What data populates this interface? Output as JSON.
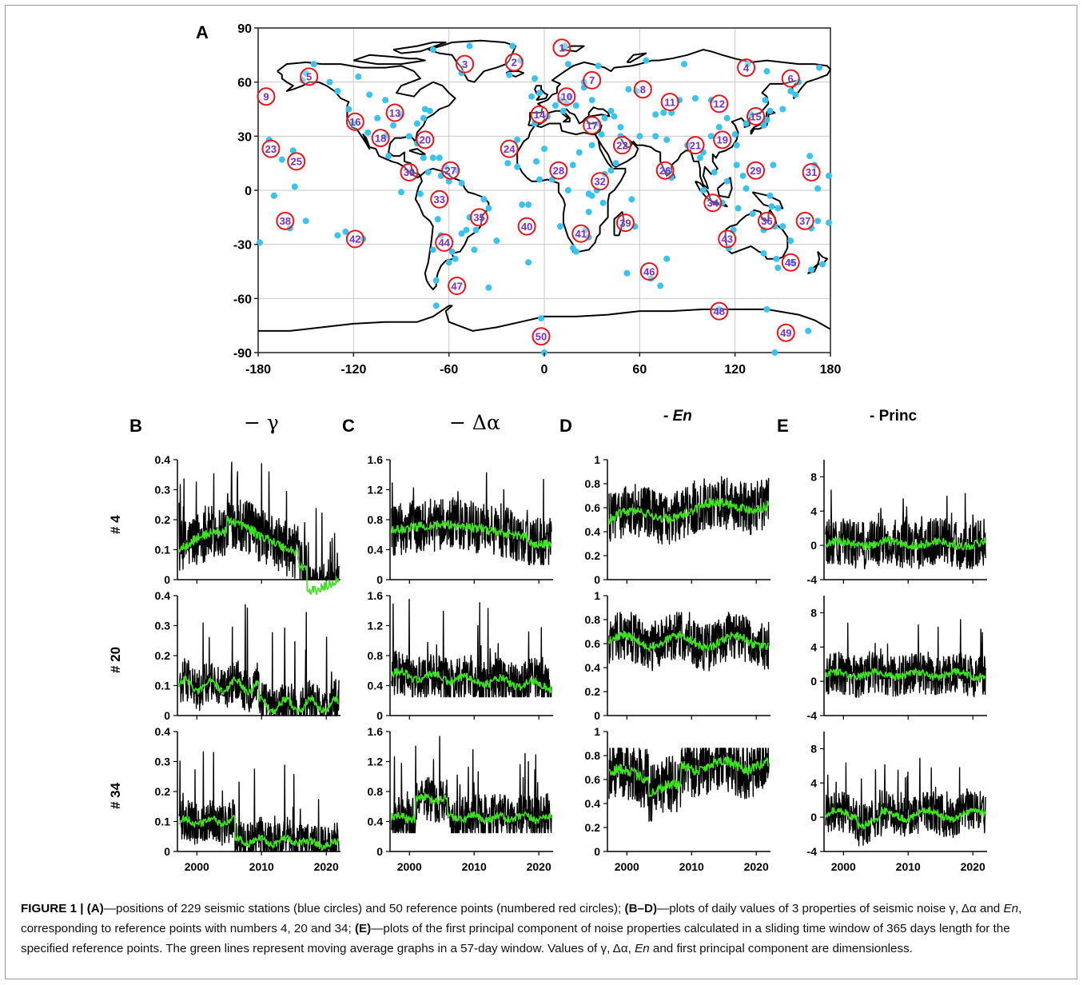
{
  "map": {
    "panel_letter": "A",
    "x_ticks": [
      -180,
      -120,
      -60,
      0,
      60,
      120,
      180
    ],
    "y_ticks": [
      90,
      60,
      30,
      0,
      -30,
      -60,
      -90
    ],
    "station_color": "#3cc2ee",
    "ref_color": "#e8141e",
    "ref_text_color": "#7b2fc2",
    "reference_points": [
      {
        "n": "1",
        "lon": 11,
        "lat": 79
      },
      {
        "n": "2",
        "lon": -19,
        "lat": 71
      },
      {
        "n": "3",
        "lon": -50,
        "lat": 70
      },
      {
        "n": "4",
        "lon": 127,
        "lat": 68
      },
      {
        "n": "5",
        "lon": -148,
        "lat": 63
      },
      {
        "n": "6",
        "lon": 155,
        "lat": 62
      },
      {
        "n": "7",
        "lon": 30,
        "lat": 61
      },
      {
        "n": "8",
        "lon": 62,
        "lat": 56
      },
      {
        "n": "9",
        "lon": -175,
        "lat": 52
      },
      {
        "n": "10",
        "lon": 14,
        "lat": 52
      },
      {
        "n": "11",
        "lon": 79,
        "lat": 49
      },
      {
        "n": "12",
        "lon": 110,
        "lat": 48
      },
      {
        "n": "13",
        "lon": -94,
        "lat": 43
      },
      {
        "n": "14",
        "lon": -3,
        "lat": 42
      },
      {
        "n": "15",
        "lon": 133,
        "lat": 41
      },
      {
        "n": "16",
        "lon": -119,
        "lat": 38
      },
      {
        "n": "17",
        "lon": 30,
        "lat": 36
      },
      {
        "n": "18",
        "lon": -103,
        "lat": 29
      },
      {
        "n": "19",
        "lon": 112,
        "lat": 28
      },
      {
        "n": "20",
        "lon": -75,
        "lat": 28
      },
      {
        "n": "21",
        "lon": 95,
        "lat": 25
      },
      {
        "n": "22",
        "lon": 49,
        "lat": 25
      },
      {
        "n": "23",
        "lon": -172,
        "lat": 23
      },
      {
        "n": "24",
        "lon": -22,
        "lat": 23
      },
      {
        "n": "25",
        "lon": -156,
        "lat": 16
      },
      {
        "n": "26",
        "lon": 76,
        "lat": 11
      },
      {
        "n": "27",
        "lon": -59,
        "lat": 11
      },
      {
        "n": "28",
        "lon": 9,
        "lat": 11
      },
      {
        "n": "29",
        "lon": 133,
        "lat": 11
      },
      {
        "n": "30",
        "lon": -85,
        "lat": 10
      },
      {
        "n": "31",
        "lon": 168,
        "lat": 10
      },
      {
        "n": "32",
        "lon": 35,
        "lat": 5
      },
      {
        "n": "33",
        "lon": -66,
        "lat": -5
      },
      {
        "n": "34",
        "lon": 106,
        "lat": -7
      },
      {
        "n": "35",
        "lon": -41,
        "lat": -15
      },
      {
        "n": "36",
        "lon": 140,
        "lat": -17
      },
      {
        "n": "37",
        "lon": 164,
        "lat": -17
      },
      {
        "n": "38",
        "lon": -163,
        "lat": -17
      },
      {
        "n": "39",
        "lon": 51,
        "lat": -18
      },
      {
        "n": "40",
        "lon": -11,
        "lat": -20
      },
      {
        "n": "41",
        "lon": 23,
        "lat": -24
      },
      {
        "n": "42",
        "lon": -119,
        "lat": -27
      },
      {
        "n": "43",
        "lon": 115,
        "lat": -27
      },
      {
        "n": "44",
        "lon": -63,
        "lat": -29
      },
      {
        "n": "45",
        "lon": 155,
        "lat": -40
      },
      {
        "n": "46",
        "lon": 66,
        "lat": -45
      },
      {
        "n": "47",
        "lon": -55,
        "lat": -53
      },
      {
        "n": "48",
        "lon": 110,
        "lat": -67
      },
      {
        "n": "49",
        "lon": 152,
        "lat": -79
      },
      {
        "n": "50",
        "lon": -2,
        "lat": -81
      }
    ]
  },
  "panels": [
    {
      "letter": "B",
      "title": "− γ",
      "title_style": "serif",
      "ylabels": [
        "0.4",
        "0.3",
        "0.2",
        "0.1",
        "0"
      ],
      "yvals": [
        0.4,
        0.3,
        0.2,
        0.1,
        0
      ],
      "ymin": 0,
      "ymax": 0.4
    },
    {
      "letter": "C",
      "title": "− Δα",
      "title_style": "serif",
      "ylabels": [
        "1.6",
        "1.2",
        "0.8",
        "0.4",
        "0"
      ],
      "yvals": [
        1.6,
        1.2,
        0.8,
        0.4,
        0
      ],
      "ymin": 0,
      "ymax": 1.6
    },
    {
      "letter": "D",
      "title": "- En",
      "title_style": "italic-bold",
      "ylabels": [
        "1",
        "0.8",
        "0.6",
        "0.4",
        "0.2",
        "0"
      ],
      "yvals": [
        1,
        0.8,
        0.6,
        0.4,
        0.2,
        0
      ],
      "ymin": 0,
      "ymax": 1
    },
    {
      "letter": "E",
      "title": "- Princ",
      "title_style": "bold",
      "ylabels": [
        "8",
        "4",
        "0",
        "-4"
      ],
      "yvals": [
        8,
        4,
        0,
        -4
      ],
      "ymin": -4,
      "ymax": 10
    }
  ],
  "rows": [
    "# 4",
    "# 20",
    "# 34"
  ],
  "x_ticks": [
    "2000",
    "2010",
    "2020"
  ],
  "x_tick_years": [
    2000,
    2010,
    2020
  ],
  "caption": {
    "fig": "FIGURE 1 | (A)",
    "t1": "—positions of 229 seismic stations (blue circles) and 50 reference points (numbered red circles);",
    "bd": "(B–D)",
    "t2": "—plots of daily values of 3 properties of seismic noise γ, Δα and",
    "en": "En",
    "t3": ", corresponding to reference points with numbers 4, 20 and 34;",
    "e": "(E)",
    "t4": "—plots of the first principal component of noise properties calculated in a sliding time window of 365 days length for the specified reference points. The green lines represent moving average graphs in a 57-day window. Values of γ, Δα,",
    "en2": "En",
    "t5": "and first principal component are dimensionless."
  }
}
